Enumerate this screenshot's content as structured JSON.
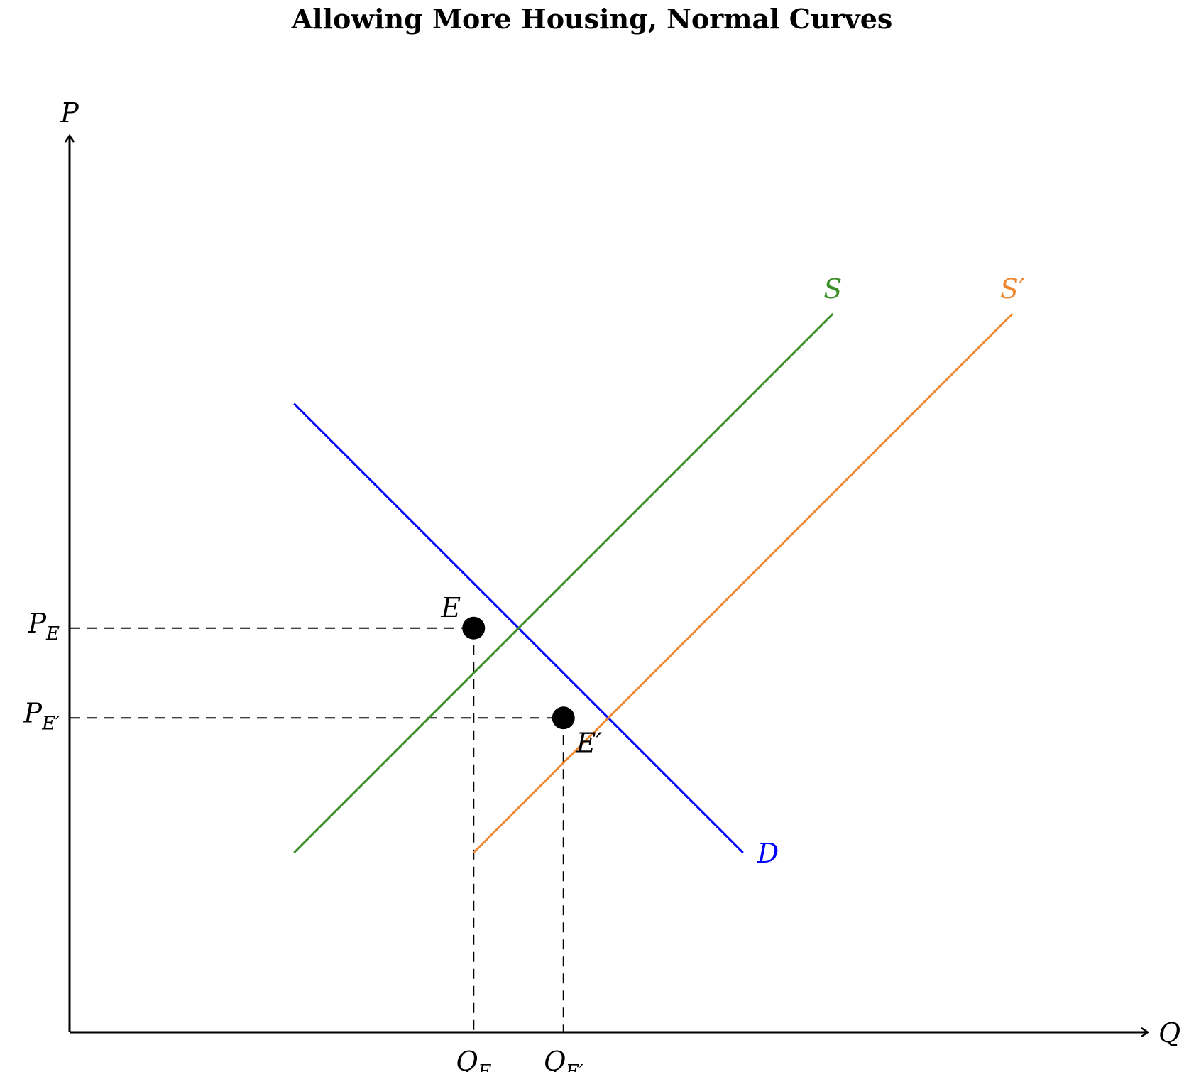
{
  "title": "Allowing More Housing, Normal Curves",
  "axes": {
    "y_label": "P",
    "x_label": "Q"
  },
  "curves": {
    "demand": {
      "label": "D",
      "color": "#0000ff",
      "points": [
        [
          2.5,
          7.0
        ],
        [
          7.5,
          2.0
        ]
      ]
    },
    "supply": {
      "label": "S",
      "color": "#3d8f2a",
      "points": [
        [
          2.5,
          2.0
        ],
        [
          8.5,
          8.0
        ]
      ]
    },
    "supply_shifted": {
      "label": "S",
      "label_mark": "′",
      "color": "#ee8833",
      "points": [
        [
          4.5,
          2.0
        ],
        [
          10.5,
          8.0
        ]
      ]
    }
  },
  "equilibria": [
    {
      "id": "E",
      "label": "E",
      "label_mark": "",
      "q": 4.5,
      "p": 4.5,
      "price_label": "P",
      "price_sub": "E",
      "qty_label": "Q",
      "qty_sub": "E"
    },
    {
      "id": "E_prime",
      "label": "E",
      "label_mark": "′",
      "q": 5.5,
      "p": 3.5,
      "price_label": "P",
      "price_sub": "E′",
      "qty_label": "Q",
      "qty_sub": "E′"
    }
  ],
  "range": {
    "q": [
      0,
      12
    ],
    "p": [
      0,
      10
    ]
  }
}
